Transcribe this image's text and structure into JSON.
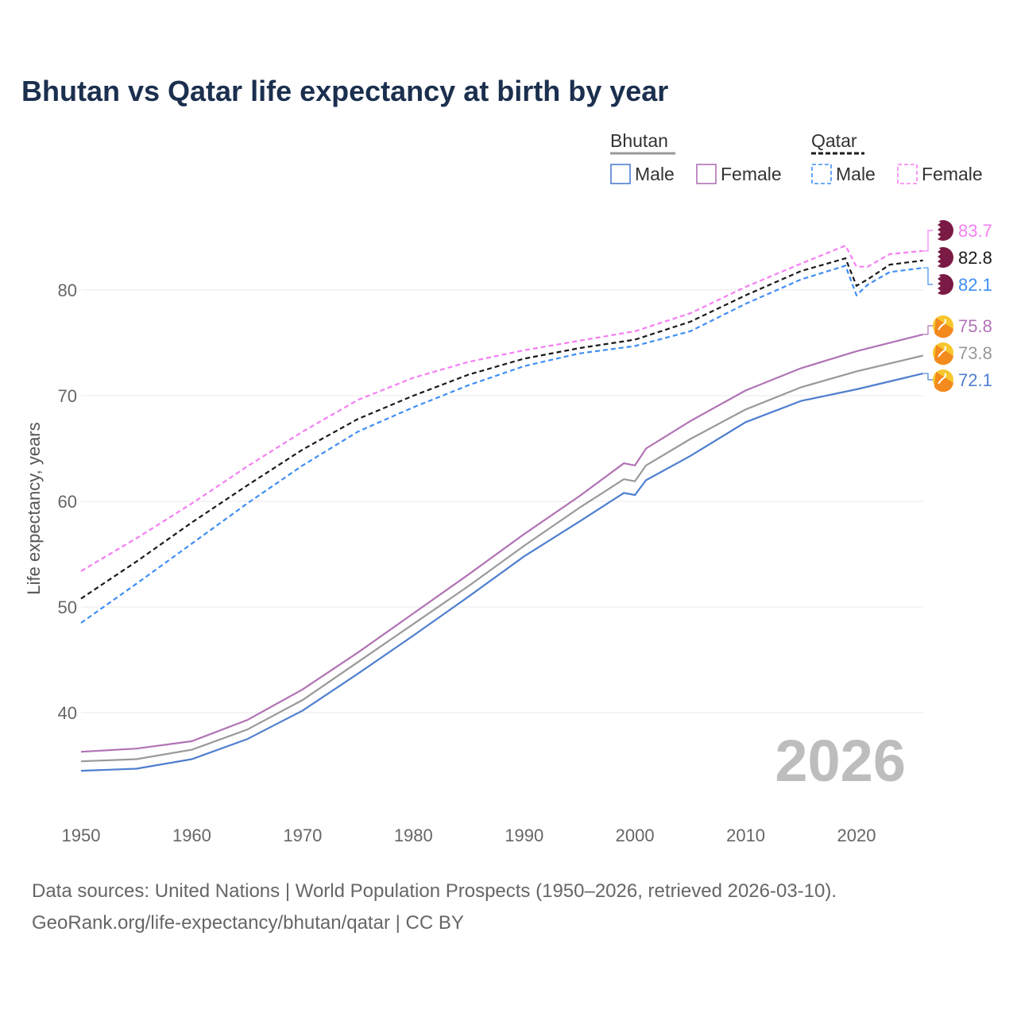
{
  "chart_data": {
    "type": "line",
    "title": "Bhutan vs Qatar life expectancy at birth by year",
    "xlabel": "",
    "ylabel": "Life expectancy, years",
    "xlim": [
      1950,
      2026
    ],
    "ylim": [
      31,
      89
    ],
    "x_ticks": [
      "1950",
      "1960",
      "1970",
      "1980",
      "1990",
      "2000",
      "2010",
      "2020"
    ],
    "y_ticks": [
      "40",
      "50",
      "60",
      "70",
      "80"
    ],
    "grid": true,
    "year_watermark": "2026",
    "legend": {
      "placement": "top-right",
      "groups": [
        {
          "name": "Bhutan",
          "items": [
            "Male",
            "Female"
          ]
        },
        {
          "name": "Qatar",
          "items": [
            "Male",
            "Female"
          ]
        }
      ]
    },
    "series": [
      {
        "name": "Bhutan Male",
        "country": "Bhutan",
        "color": "#4f7fcf",
        "dash": false,
        "end_label": "72.1",
        "flag": "bhutan",
        "x": [
          1950,
          1955,
          1960,
          1965,
          1970,
          1975,
          1980,
          1985,
          1990,
          1995,
          1999,
          2000,
          2001,
          2005,
          2010,
          2015,
          2020,
          2026
        ],
        "y": [
          34.5,
          34.7,
          35.6,
          37.5,
          40.2,
          43.7,
          47.3,
          51.0,
          54.8,
          58.1,
          60.8,
          60.6,
          62.0,
          64.3,
          67.5,
          69.5,
          70.6,
          72.1
        ]
      },
      {
        "name": "Bhutan Total",
        "country": "Bhutan",
        "color": "#999999",
        "dash": false,
        "end_label": "73.8",
        "flag": "bhutan",
        "x": [
          1950,
          1955,
          1960,
          1965,
          1970,
          1975,
          1980,
          1985,
          1990,
          1995,
          1999,
          2000,
          2001,
          2005,
          2010,
          2015,
          2020,
          2026
        ],
        "y": [
          35.4,
          35.6,
          36.5,
          38.4,
          41.2,
          44.8,
          48.4,
          52.0,
          55.8,
          59.4,
          62.1,
          61.9,
          63.4,
          65.9,
          68.7,
          70.8,
          72.3,
          73.8
        ]
      },
      {
        "name": "Bhutan Female",
        "country": "Bhutan",
        "color": "#b173b5",
        "dash": false,
        "end_label": "75.8",
        "flag": "bhutan",
        "x": [
          1950,
          1955,
          1960,
          1965,
          1970,
          1975,
          1980,
          1985,
          1990,
          1995,
          1999,
          2000,
          2001,
          2005,
          2010,
          2015,
          2020,
          2026
        ],
        "y": [
          36.3,
          36.6,
          37.3,
          39.3,
          42.2,
          45.7,
          49.4,
          53.1,
          56.9,
          60.5,
          63.6,
          63.4,
          65.0,
          67.6,
          70.5,
          72.6,
          74.2,
          75.8
        ]
      },
      {
        "name": "Qatar Female",
        "country": "Qatar",
        "color": "#f57ef3",
        "dash": true,
        "end_label": "83.7",
        "flag": "qatar",
        "x": [
          1950,
          1955,
          1960,
          1965,
          1970,
          1975,
          1980,
          1985,
          1990,
          1995,
          2000,
          2005,
          2010,
          2015,
          2019,
          2020,
          2021,
          2023,
          2026
        ],
        "y": [
          53.4,
          56.5,
          59.8,
          63.3,
          66.6,
          69.6,
          71.7,
          73.2,
          74.3,
          75.2,
          76.1,
          77.8,
          80.3,
          82.5,
          84.2,
          82.2,
          82.2,
          83.4,
          83.7
        ]
      },
      {
        "name": "Qatar Total",
        "country": "Qatar",
        "color": "#1a1a1a",
        "dash": true,
        "end_label": "82.8",
        "flag": "qatar",
        "x": [
          1950,
          1955,
          1960,
          1965,
          1970,
          1975,
          1980,
          1985,
          1990,
          1995,
          2000,
          2005,
          2010,
          2015,
          2019,
          2020,
          2021,
          2023,
          2026
        ],
        "y": [
          50.8,
          54.3,
          58.0,
          61.5,
          64.9,
          67.8,
          70.0,
          72.0,
          73.5,
          74.5,
          75.3,
          77.0,
          79.5,
          81.8,
          83.0,
          80.4,
          81.0,
          82.4,
          82.8
        ]
      },
      {
        "name": "Qatar Male",
        "country": "Qatar",
        "color": "#3f8ef5",
        "dash": true,
        "end_label": "82.1",
        "flag": "qatar",
        "x": [
          1950,
          1955,
          1960,
          1965,
          1970,
          1975,
          1980,
          1985,
          1990,
          1995,
          2000,
          2005,
          2010,
          2015,
          2019,
          2020,
          2021,
          2023,
          2026
        ],
        "y": [
          48.5,
          52.2,
          56.0,
          59.8,
          63.4,
          66.6,
          68.9,
          71.0,
          72.8,
          74.0,
          74.7,
          76.1,
          78.7,
          81.0,
          82.3,
          79.5,
          80.5,
          81.7,
          82.1
        ]
      }
    ]
  },
  "sources": {
    "line1": "Data sources: United Nations | World Population Prospects (1950–2026, retrieved 2026-03-10).",
    "line2": "GeoRank.org/life-expectancy/bhutan/qatar | CC BY"
  }
}
